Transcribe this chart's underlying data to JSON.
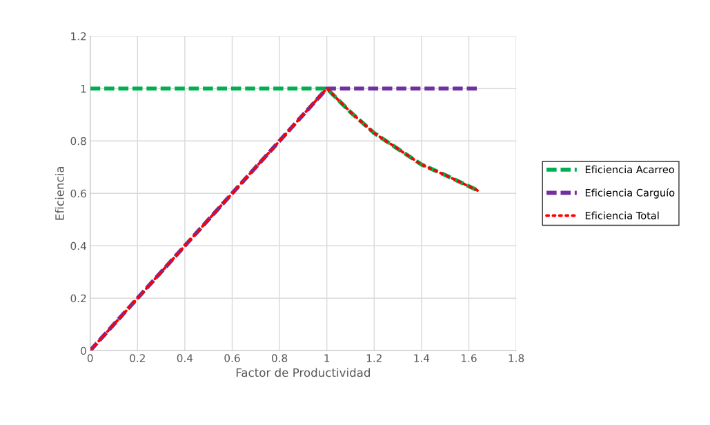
{
  "chart_data": {
    "type": "line",
    "xlabel": "Factor de Productividad",
    "ylabel": "Eficiencia",
    "xlim": [
      0,
      1.8
    ],
    "xticks": [
      0,
      0.2,
      0.4,
      0.6,
      0.8,
      1,
      1.2,
      1.4,
      1.6,
      1.8
    ],
    "ylim": [
      0,
      1.2
    ],
    "yticks": [
      0,
      0.2,
      0.4,
      0.6,
      0.8,
      1,
      1.2
    ],
    "grid": true,
    "legend": "right",
    "marker": "none",
    "series": [
      {
        "name": "Eficiencia Acarreo",
        "color": "#00b050",
        "line_style": "dashed",
        "x": [
          0,
          0.2,
          0.4,
          0.6,
          0.8,
          1,
          1.1,
          1.2,
          1.3,
          1.4,
          1.5,
          1.64
        ],
        "values": [
          1,
          1,
          1,
          1,
          1,
          1,
          0.91,
          0.83,
          0.77,
          0.71,
          0.67,
          0.61
        ]
      },
      {
        "name": "Eficiencia Carguío",
        "color": "#7030a0",
        "line_style": "dashed",
        "x": [
          0,
          0.2,
          0.4,
          0.6,
          0.8,
          1,
          1.2,
          1.4,
          1.64
        ],
        "values": [
          0,
          0.2,
          0.4,
          0.6,
          0.8,
          1,
          1,
          1,
          1
        ]
      },
      {
        "name": "Eficiencia Total",
        "color": "#ff0000",
        "line_style": "dotted",
        "x": [
          0,
          0.2,
          0.4,
          0.6,
          0.8,
          1,
          1.1,
          1.2,
          1.3,
          1.4,
          1.5,
          1.64
        ],
        "values": [
          0,
          0.2,
          0.4,
          0.6,
          0.8,
          1,
          0.91,
          0.83,
          0.77,
          0.71,
          0.67,
          0.61
        ]
      }
    ]
  }
}
